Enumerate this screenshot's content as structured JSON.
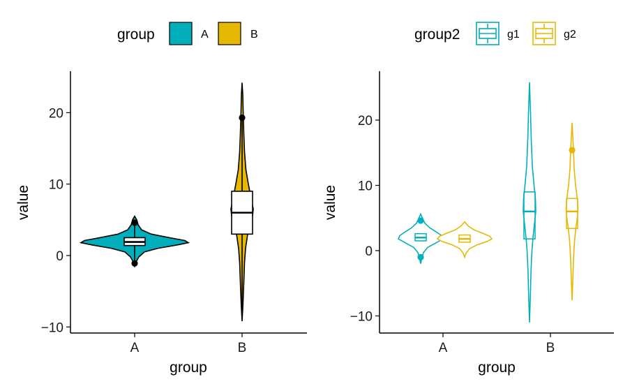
{
  "colors": {
    "A": "#00AFBB",
    "B": "#E7B800",
    "g1": "#00AFBB",
    "g2": "#E7B800",
    "axis": "#000000"
  },
  "chart_data": [
    {
      "type": "violin",
      "title": "",
      "xlabel": "group",
      "ylabel": "value",
      "categories": [
        "A",
        "B"
      ],
      "ylim": [
        -10.5,
        25.5
      ],
      "yticks": [
        -10,
        0,
        10,
        20
      ],
      "ytick_labels": [
        "−10",
        "0",
        "10",
        "20"
      ],
      "legend": {
        "title": "group",
        "entries": [
          "A",
          "B"
        ],
        "position": "top"
      },
      "series": [
        {
          "name": "A",
          "violin_range": [
            -1.5,
            5.5
          ],
          "box": {
            "whisker_low": -1,
            "q1": 1.4,
            "median": 1.9,
            "q3": 2.5,
            "whisker_high": 4.6
          },
          "outliers": [
            -1.1,
            4.6
          ]
        },
        {
          "name": "B",
          "violin_range": [
            -9.2,
            24.2
          ],
          "box": {
            "whisker_low": -8,
            "q1": 3,
            "median": 6,
            "q3": 9,
            "whisker_high": 19.3
          },
          "outliers": [
            19.3
          ]
        }
      ]
    },
    {
      "type": "violin",
      "title": "",
      "xlabel": "group",
      "ylabel": "value",
      "categories": [
        "A",
        "B"
      ],
      "ylim": [
        -11.5,
        27.5
      ],
      "yticks": [
        -10,
        0,
        10,
        20
      ],
      "ytick_labels": [
        "−10",
        "0",
        "10",
        "20"
      ],
      "legend": {
        "title": "group2",
        "entries": [
          "g1",
          "g2"
        ],
        "position": "top"
      },
      "series": [
        {
          "name": "g1",
          "category": "A",
          "violin_range": [
            -2,
            5.6
          ],
          "box": {
            "q1": 1.5,
            "median": 2,
            "q3": 2.6
          },
          "outliers": [
            -1,
            4.6
          ]
        },
        {
          "name": "g2",
          "category": "A",
          "violin_range": [
            -1,
            4.4
          ],
          "box": {
            "q1": 1.3,
            "median": 1.8,
            "q3": 2.4
          },
          "outliers": []
        },
        {
          "name": "g1",
          "category": "B",
          "violin_range": [
            -11,
            25.8
          ],
          "box": {
            "q1": 1.8,
            "median": 6,
            "q3": 9
          },
          "outliers": []
        },
        {
          "name": "g2",
          "category": "B",
          "violin_range": [
            -7.6,
            19.6
          ],
          "box": {
            "q1": 3.4,
            "median": 6,
            "q3": 8
          },
          "outliers": [
            15.4
          ]
        }
      ]
    }
  ]
}
